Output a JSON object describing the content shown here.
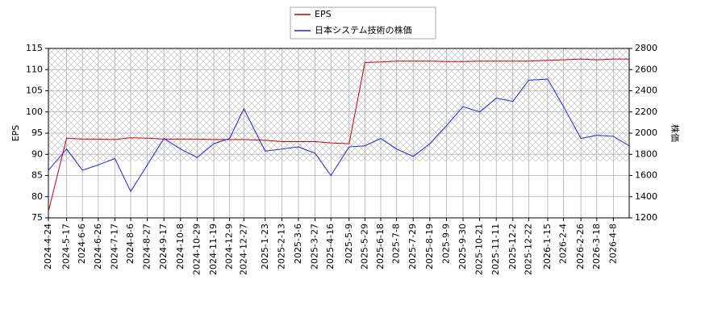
{
  "chart_data": {
    "type": "line",
    "x": [
      "2024-4-24",
      "2024-5-17",
      "2024-6-6",
      "2024-6-26",
      "2024-7-17",
      "2024-8-6",
      "2024-8-27",
      "2024-9-17",
      "2024-10-8",
      "2024-10-29",
      "2024-11-19",
      "2024-12-9",
      "2024-12-27",
      "2025-1-23",
      "2025-2-13",
      "2025-3-6",
      "2025-3-27",
      "2025-4-16",
      "2025-5-9",
      "2025-5-29",
      "2025-6-18",
      "2025-7-8",
      "2025-7-29",
      "2025-8-19",
      "2025-9-9",
      "2025-9-30",
      "2025-10-21",
      "2025-11-11",
      "2025-12-2",
      "2025-12-22",
      "2026-1-15",
      "2026-2-4",
      "2026-2-26",
      "2026-3-18",
      "2026-4-8",
      "2026-4-28"
    ],
    "series": [
      {
        "name": "EPS",
        "color": "#cc0000",
        "values": [
          76.5,
          93.8,
          93.6,
          93.6,
          93.5,
          93.9,
          93.8,
          93.6,
          93.6,
          93.6,
          93.5,
          93.5,
          93.5,
          93.3,
          93.0,
          93.0,
          93.0,
          92.7,
          92.5,
          111.7,
          111.8,
          112.0,
          112.0,
          112.0,
          111.9,
          111.9,
          112.0,
          112.0,
          112.0,
          112.0,
          112.2,
          112.3,
          112.5,
          112.3,
          112.5,
          112.5
        ]
      },
      {
        "name": "日本システム技術の株価",
        "color": "#2222dd",
        "axis": "y2",
        "values": [
          1650,
          1850,
          1650,
          1700,
          1760,
          1450,
          1700,
          1950,
          1850,
          1770,
          1900,
          1950,
          2230,
          1830,
          1850,
          1870,
          1810,
          1600,
          1870,
          1880,
          1950,
          1850,
          1780,
          1900,
          2070,
          2250,
          2200,
          2330,
          2300,
          2500,
          2510,
          2250,
          1950,
          1980,
          1970,
          1880
        ]
      }
    ],
    "xlim": [
      "2024-4-24",
      "2026-4-28"
    ],
    "xticks": [
      "2024-4-24",
      "2024-5-17",
      "2024-6-6",
      "2024-6-26",
      "2024-7-17",
      "2024-8-6",
      "2024-8-27",
      "2024-9-17",
      "2024-10-8",
      "2024-10-29",
      "2024-11-19",
      "2024-12-9",
      "2024-12-27",
      "2025-1-23",
      "2025-2-13",
      "2025-3-6",
      "2025-3-27",
      "2025-4-16",
      "2025-5-9",
      "2025-5-29",
      "2025-6-18",
      "2025-7-8",
      "2025-7-29",
      "2025-8-19",
      "2025-9-9",
      "2025-9-30",
      "2025-10-21",
      "2025-11-11",
      "2025-12-2",
      "2025-12-22",
      "2026-1-15",
      "2026-2-4",
      "2026-2-26",
      "2026-3-18",
      "2026-4-8"
    ],
    "ylim": [
      75,
      115
    ],
    "yticks": [
      75,
      80,
      85,
      90,
      95,
      100,
      105,
      110,
      115
    ],
    "y2lim": [
      1200,
      2800
    ],
    "y2ticks": [
      1200,
      1400,
      1600,
      1800,
      2000,
      2200,
      2400,
      2600,
      2800
    ],
    "ylabel": "EPS",
    "y2label": "株価",
    "grid": true,
    "legend": "top"
  }
}
